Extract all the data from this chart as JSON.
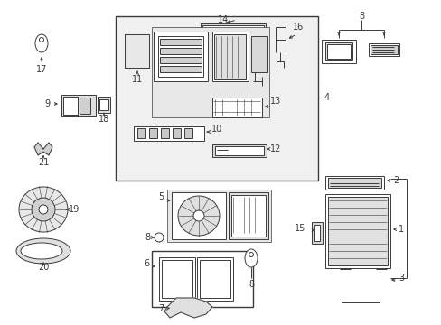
{
  "bg_color": "#ffffff",
  "lc": "#3a3a3a",
  "lw": 0.7,
  "fig_width": 4.89,
  "fig_height": 3.6,
  "dpi": 100
}
